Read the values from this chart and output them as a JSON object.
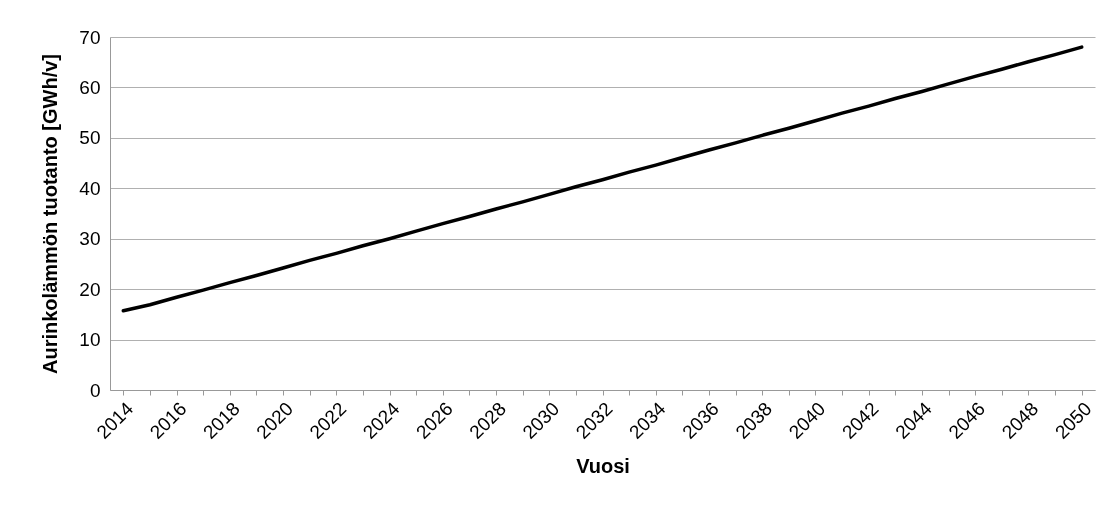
{
  "chart_data": {
    "type": "line",
    "xlabel": "Vuosi",
    "ylabel": "Aurinkolämmön tuotanto [GWh/v]",
    "categories": [
      "2014",
      null,
      "2016",
      null,
      "2018",
      null,
      "2020",
      null,
      "2022",
      null,
      "2024",
      null,
      "2026",
      null,
      "2028",
      null,
      "2030",
      null,
      "2032",
      null,
      "2034",
      null,
      "2036",
      null,
      "2038",
      null,
      "2040",
      null,
      "2042",
      null,
      "2044",
      null,
      "2046",
      null,
      "2048",
      null,
      "2050"
    ],
    "series": [
      {
        "color": "#000000",
        "values": [
          15.7,
          16.9,
          18.4,
          19.8,
          21.3,
          22.7,
          24.2,
          25.7,
          27.1,
          28.6,
          30.0,
          31.5,
          33.0,
          34.4,
          35.9,
          37.3,
          38.8,
          40.3,
          41.7,
          43.2,
          44.6,
          46.1,
          47.6,
          49.0,
          50.5,
          51.9,
          53.4,
          54.9,
          56.3,
          57.8,
          59.2,
          60.7,
          62.2,
          63.6,
          65.1,
          66.5,
          68.0
        ]
      }
    ],
    "ylim": [
      0,
      70
    ],
    "yticks": [
      0,
      10,
      20,
      30,
      40,
      50,
      60,
      70
    ],
    "grid": "y",
    "marker": "none",
    "line_style": "solid"
  }
}
